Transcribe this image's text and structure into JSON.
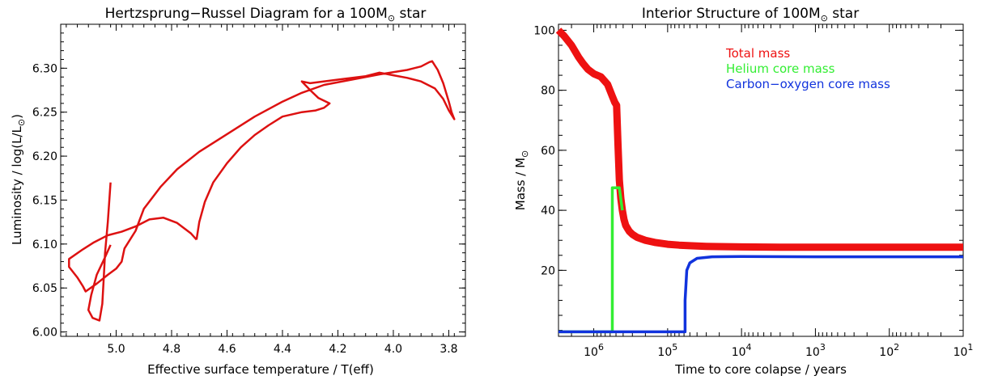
{
  "chart_data": [
    {
      "type": "line",
      "title": "Hertzsprung−Russel Diagram for a 100M",
      "title_suffix": " star",
      "xlabel": "Effective surface temperature / T(eff)",
      "ylabel": "Luminosity / log(L/L",
      "ylabel_suffix": ")",
      "x_reversed": true,
      "xlim": [
        5.2,
        3.74
      ],
      "ylim": [
        5.995,
        6.35
      ],
      "x_ticks": [
        5.0,
        4.8,
        4.6,
        4.4,
        4.2,
        4.0,
        3.8
      ],
      "x_tick_labels": [
        "5.0",
        "4.8",
        "4.6",
        "4.4",
        "4.2",
        "4.0",
        "3.8"
      ],
      "y_ticks": [
        6.0,
        6.05,
        6.1,
        6.15,
        6.2,
        6.25,
        6.3
      ],
      "y_tick_labels": [
        "6.00",
        "6.05",
        "6.10",
        "6.15",
        "6.20",
        "6.25",
        "6.30"
      ],
      "grid": false,
      "color": "#dd1111",
      "series": [
        {
          "x": [
            4.71,
            4.73,
            4.78,
            4.83,
            4.88,
            4.93,
            4.98,
            5.03,
            5.08,
            5.12,
            5.17,
            5.17,
            5.14,
            5.12,
            5.11,
            5.07,
            5.03,
            5.0,
            4.98,
            4.97,
            4.93,
            4.9,
            4.84,
            4.78,
            4.7,
            4.6,
            4.5,
            4.4,
            4.33,
            4.25,
            4.15,
            4.05,
            3.95,
            3.9,
            3.87,
            3.86,
            3.84,
            3.82,
            3.8,
            3.79,
            3.78,
            3.8,
            3.82,
            3.85,
            3.9,
            3.95,
            4.0,
            4.05,
            4.1,
            4.2,
            4.3,
            4.33,
            4.3,
            4.27,
            4.23,
            4.25,
            4.28,
            4.33,
            4.4,
            4.45,
            4.5,
            4.55,
            4.6,
            4.65,
            4.68,
            4.7,
            4.71
          ],
          "y": [
            6.105,
            6.112,
            6.124,
            6.13,
            6.128,
            6.12,
            6.114,
            6.11,
            6.102,
            6.094,
            6.083,
            6.074,
            6.062,
            6.052,
            6.046,
            6.055,
            6.065,
            6.072,
            6.08,
            6.095,
            6.115,
            6.14,
            6.165,
            6.185,
            6.205,
            6.225,
            6.245,
            6.262,
            6.272,
            6.281,
            6.287,
            6.293,
            6.298,
            6.302,
            6.307,
            6.308,
            6.298,
            6.283,
            6.262,
            6.25,
            6.242,
            6.252,
            6.265,
            6.277,
            6.285,
            6.289,
            6.292,
            6.295,
            6.291,
            6.287,
            6.283,
            6.285,
            6.275,
            6.266,
            6.26,
            6.255,
            6.252,
            6.25,
            6.245,
            6.235,
            6.224,
            6.21,
            6.192,
            6.17,
            6.148,
            6.125,
            6.105
          ]
        },
        {
          "x": [
            5.02,
            5.04,
            5.07,
            5.09,
            5.1,
            5.085,
            5.06,
            5.05,
            5.045,
            5.04,
            5.03,
            5.02
          ],
          "y": [
            6.099,
            6.085,
            6.065,
            6.042,
            6.025,
            6.016,
            6.013,
            6.032,
            6.06,
            6.09,
            6.125,
            6.17
          ]
        }
      ]
    },
    {
      "type": "line",
      "title": "Interior Structure of 100M",
      "title_suffix": " star",
      "xlabel": "Time to core colapse / years",
      "ylabel": "Mass / M",
      "x_scale": "log",
      "x_reversed": true,
      "xlim": [
        3000000,
        10
      ],
      "ylim": [
        -2,
        102
      ],
      "x_ticks": [
        1000000,
        100000,
        10000,
        1000,
        100,
        10
      ],
      "x_tick_bases": [
        "10",
        "10",
        "10",
        "10",
        "10",
        "10"
      ],
      "x_tick_exponents": [
        "6",
        "5",
        "4",
        "3",
        "2",
        "1"
      ],
      "y_ticks": [
        20,
        40,
        60,
        80,
        100
      ],
      "y_tick_labels": [
        "20",
        "40",
        "60",
        "80",
        "100"
      ],
      "grid": false,
      "legend_position": "top-right",
      "series": [
        {
          "name": "Total mass",
          "color": "#ee1111",
          "x": [
            3000000,
            2500000,
            2000000,
            1600000,
            1400000,
            1200000,
            1000000,
            800000,
            650000,
            560000,
            520000,
            490000,
            470000,
            450000,
            430000,
            410000,
            390000,
            370000,
            350000,
            330000,
            300000,
            260000,
            200000,
            150000,
            100000,
            70000,
            50000,
            30000,
            20000,
            10000,
            3000,
            1000,
            100,
            10
          ],
          "y": [
            100,
            98,
            95,
            91,
            89,
            87,
            85.5,
            84.5,
            82,
            78,
            76,
            75,
            62,
            50,
            44,
            40,
            37,
            35,
            34,
            33,
            32,
            31,
            30,
            29.3,
            28.7,
            28.4,
            28.2,
            28,
            27.9,
            27.8,
            27.7,
            27.7,
            27.7,
            27.7
          ]
        },
        {
          "name": "Helium core mass",
          "color": "#33ee33",
          "x": [
            3000000,
            560000,
            560000,
            450000,
            420000,
            410000
          ],
          "y": [
            -0.5,
            -0.5,
            47.5,
            47.5,
            42,
            40
          ]
        },
        {
          "name": "Carbon−oxygen core mass",
          "color": "#1133dd",
          "x": [
            3000000,
            58000,
            58000,
            55000,
            50000,
            40000,
            25000,
            10000,
            1000,
            100,
            10
          ],
          "y": [
            -0.5,
            -0.5,
            10,
            20,
            22.5,
            24,
            24.5,
            24.6,
            24.5,
            24.5,
            24.5
          ]
        }
      ]
    }
  ]
}
